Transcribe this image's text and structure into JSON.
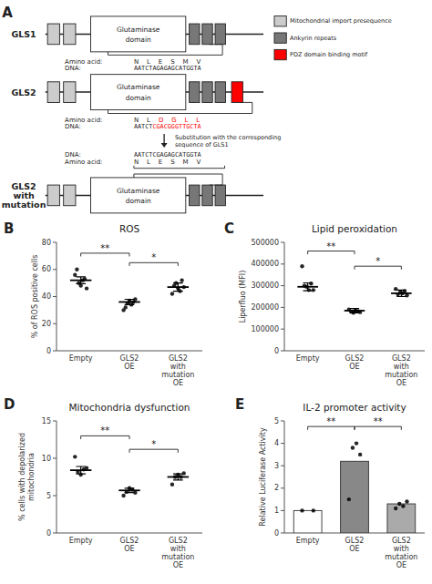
{
  "chart_data": [
    {
      "type": "diagram",
      "annotations": [
        "A",
        "GLS1",
        "Glutaminase",
        "domain",
        "Amino acid:",
        "N    L    E    S    M    V",
        "DNA:",
        "AATCTAGAGAGCATGGTA",
        "GLS2",
        "Glutaminase",
        "domain",
        "Amino acid:",
        "N    L    ",
        {
          "text": "D    G    L    L",
          "color": "red"
        },
        "DNA:",
        "AATCT",
        {
          "text": "CGACGGGTTGCTA",
          "color": "red"
        },
        "Substitution with the corresponding\nsequence of GLS1",
        "DNA:",
        "AATCTCGAGAGCATGGTA",
        "Amino acid:",
        "N    L    E    S    M    V",
        "GLS2\nwith\nmutation",
        "Glutaminase",
        "domain"
      ],
      "series": [
        {
          "name": "Mitochondrial import presequence",
          "color": "#cccccc"
        },
        {
          "name": "Ankyrin repeats",
          "color": "#777777"
        },
        {
          "name": "PDZ domain binding motif",
          "color": "red"
        }
      ]
    },
    {
      "type": "dot",
      "title": "ROS",
      "ylabel": "% of ROS positive cells",
      "categories": [
        "Empty",
        "GLS2\nOE",
        "GLS2\nwith\nmutation\nOE"
      ],
      "values": [
        52,
        36,
        47
      ],
      "errors": [
        2.5,
        2.0,
        3.0
      ],
      "dots": [
        [
          56,
          60,
          50,
          48,
          52,
          53,
          46
        ],
        [
          30,
          32,
          35,
          37,
          34,
          36,
          38
        ],
        [
          42,
          48,
          50,
          46,
          44,
          52,
          47
        ]
      ],
      "color": "black",
      "ylim": [
        0,
        80
      ],
      "yticks": [
        0,
        20,
        40,
        60,
        80
      ],
      "grid": false,
      "annotations": [
        {
          "text": "B"
        },
        {
          "text": "**",
          "between": [
            "Empty",
            "GLS2\nOE"
          ],
          "y": 72
        },
        {
          "text": "*",
          "between": [
            "GLS2\nOE",
            "GLS2\nwith\nmutation\nOE"
          ],
          "y": 65
        }
      ]
    },
    {
      "type": "dot",
      "title": "Lipid peroxidation",
      "ylabel": "Liperfluo (MFI)",
      "categories": [
        "Empty",
        "GLS2\nOE",
        "GLS2\nwith\nmutation\nOE"
      ],
      "values": [
        295000,
        185000,
        265000
      ],
      "errors": [
        18000,
        10000,
        15000
      ],
      "dots": [
        [
          390000,
          300000,
          295000,
          280000,
          310000,
          280000
        ],
        [
          190000,
          180000,
          175000,
          185000,
          182000,
          178000
        ],
        [
          285000,
          260000,
          270000,
          265000,
          275000,
          255000
        ]
      ],
      "color": "black",
      "ylim": [
        0,
        500000
      ],
      "yticks": [
        0,
        100000,
        200000,
        300000,
        400000,
        500000
      ],
      "grid": false,
      "annotations": [
        {
          "text": "C"
        },
        {
          "text": "**",
          "between": [
            "Empty",
            "GLS2\nOE"
          ],
          "y": 460000
        },
        {
          "text": "*",
          "between": [
            "GLS2\nOE",
            "GLS2\nwith\nmutation\nOE"
          ],
          "y": 390000
        }
      ]
    },
    {
      "type": "dot",
      "title": "Mitochondria dysfunction",
      "ylabel": "% cells with depolarized\nmitochondria",
      "categories": [
        "Empty",
        "GLS2\nOE",
        "GLS2\nwith\nmutation\nOE"
      ],
      "values": [
        8.4,
        5.7,
        7.5
      ],
      "errors": [
        0.5,
        0.3,
        0.4
      ],
      "dots": [
        [
          10.2,
          8.2,
          7.8,
          8.5,
          8.7
        ],
        [
          5.0,
          5.5,
          6.0,
          5.8,
          5.4
        ],
        [
          6.5,
          7.5,
          7.8,
          7.5,
          8.0
        ]
      ],
      "color": "black",
      "ylim": [
        0,
        15
      ],
      "yticks": [
        0,
        5,
        10,
        15
      ],
      "grid": false,
      "annotations": [
        {
          "text": "D"
        },
        {
          "text": "**",
          "between": [
            "Empty",
            "GLS2\nOE"
          ],
          "y": 13
        },
        {
          "text": "*",
          "between": [
            "GLS2\nOE",
            "GLS2\nwith\nmutation\nOE"
          ],
          "y": 11.2
        }
      ]
    },
    {
      "type": "bar",
      "title": "IL-2 promoter activity",
      "ylabel": "Relative Luciferase Activity",
      "categories": [
        "Empty",
        "GLS2\nOE",
        "GLS2\nwith\nmutation\nOE"
      ],
      "values": [
        1.0,
        3.2,
        1.3
      ],
      "colors": [
        "#ffffff",
        "#888888",
        "#aaaaaa"
      ],
      "dots": [
        [
          1.0,
          1.0
        ],
        [
          1.5,
          3.8,
          4.0,
          3.5
        ],
        [
          1.1,
          1.3,
          1.2,
          1.4
        ]
      ],
      "color": "black",
      "ylim": [
        0,
        5
      ],
      "yticks": [
        0,
        1,
        2,
        3,
        4,
        5
      ],
      "grid": false,
      "annotations": [
        {
          "text": "E"
        },
        {
          "text": "**",
          "between": [
            "Empty",
            "GLS2\nOE"
          ],
          "y": 4.75
        },
        {
          "text": "**",
          "between": [
            "GLS2\nOE",
            "GLS2\nwith\nmutation\nOE"
          ],
          "y": 4.75
        }
      ]
    }
  ]
}
